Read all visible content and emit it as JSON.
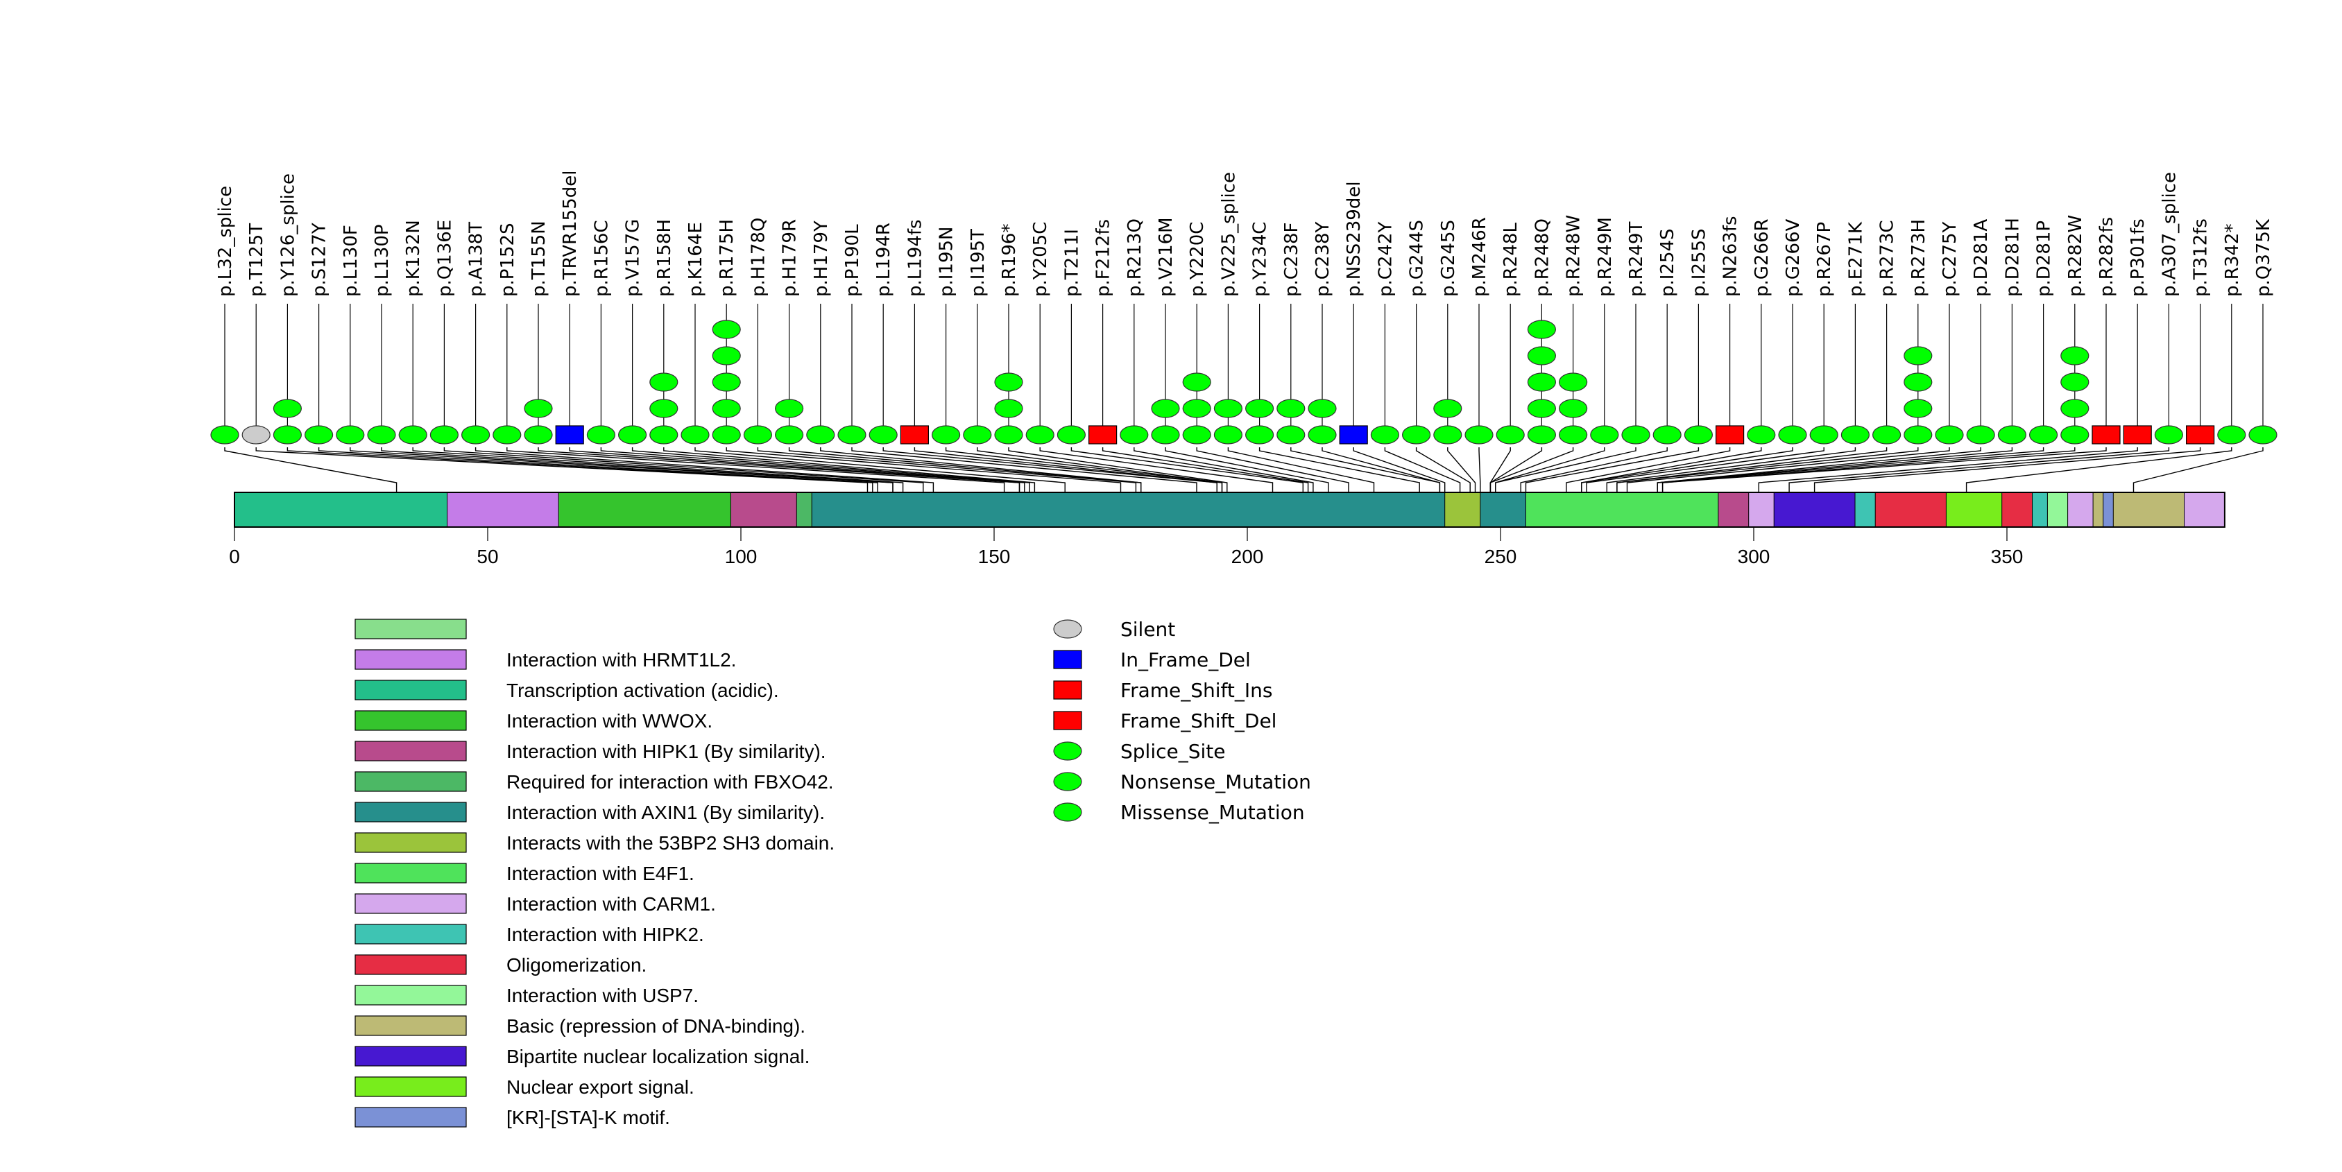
{
  "chart_data": {
    "type": "lollipop",
    "title": "",
    "protein_length": 393,
    "x_axis": {
      "ticks": [
        0,
        50,
        100,
        150,
        200,
        250,
        300,
        350
      ],
      "range": [
        0,
        393
      ]
    },
    "mutation_types": [
      {
        "name": "Silent",
        "color": "#cccccc",
        "shape": "ellipse"
      },
      {
        "name": "In_Frame_Del",
        "color": "#0000ff",
        "shape": "rect"
      },
      {
        "name": "Frame_Shift_Ins",
        "color": "#ff0000",
        "shape": "rect"
      },
      {
        "name": "Frame_Shift_Del",
        "color": "#ff0000",
        "shape": "rect"
      },
      {
        "name": "Splice_Site",
        "color": "#00ff00",
        "shape": "ellipse"
      },
      {
        "name": "Nonsense_Mutation",
        "color": "#00ff00",
        "shape": "ellipse"
      },
      {
        "name": "Missense_Mutation",
        "color": "#00ff00",
        "shape": "ellipse"
      }
    ],
    "mutations": [
      {
        "label": "p.L32_splice",
        "pos": 32,
        "count": 1,
        "type": "Splice_Site"
      },
      {
        "label": "p.T125T",
        "pos": 125,
        "count": 1,
        "type": "Silent"
      },
      {
        "label": "p.Y126_splice",
        "pos": 126,
        "count": 2,
        "type": "Splice_Site"
      },
      {
        "label": "p.S127Y",
        "pos": 127,
        "count": 1,
        "type": "Missense_Mutation"
      },
      {
        "label": "p.L130F",
        "pos": 130,
        "count": 1,
        "type": "Missense_Mutation"
      },
      {
        "label": "p.L130P",
        "pos": 130,
        "count": 1,
        "type": "Missense_Mutation"
      },
      {
        "label": "p.K132N",
        "pos": 132,
        "count": 1,
        "type": "Missense_Mutation"
      },
      {
        "label": "p.Q136E",
        "pos": 136,
        "count": 1,
        "type": "Missense_Mutation"
      },
      {
        "label": "p.A138T",
        "pos": 138,
        "count": 1,
        "type": "Missense_Mutation"
      },
      {
        "label": "p.P152S",
        "pos": 152,
        "count": 1,
        "type": "Missense_Mutation"
      },
      {
        "label": "p.T155N",
        "pos": 155,
        "count": 2,
        "type": "Missense_Mutation"
      },
      {
        "label": "p.TRVR155del",
        "pos": 155,
        "count": 1,
        "type": "In_Frame_Del"
      },
      {
        "label": "p.R156C",
        "pos": 156,
        "count": 1,
        "type": "Missense_Mutation"
      },
      {
        "label": "p.V157G",
        "pos": 157,
        "count": 1,
        "type": "Missense_Mutation"
      },
      {
        "label": "p.R158H",
        "pos": 158,
        "count": 3,
        "type": "Missense_Mutation"
      },
      {
        "label": "p.K164E",
        "pos": 164,
        "count": 1,
        "type": "Missense_Mutation"
      },
      {
        "label": "p.R175H",
        "pos": 175,
        "count": 5,
        "type": "Missense_Mutation"
      },
      {
        "label": "p.H178Q",
        "pos": 178,
        "count": 1,
        "type": "Missense_Mutation"
      },
      {
        "label": "p.H179R",
        "pos": 179,
        "count": 2,
        "type": "Missense_Mutation"
      },
      {
        "label": "p.H179Y",
        "pos": 179,
        "count": 1,
        "type": "Missense_Mutation"
      },
      {
        "label": "p.P190L",
        "pos": 190,
        "count": 1,
        "type": "Missense_Mutation"
      },
      {
        "label": "p.L194R",
        "pos": 194,
        "count": 1,
        "type": "Missense_Mutation"
      },
      {
        "label": "p.L194fs",
        "pos": 194,
        "count": 1,
        "type": "Frame_Shift_Del"
      },
      {
        "label": "p.I195N",
        "pos": 195,
        "count": 1,
        "type": "Missense_Mutation"
      },
      {
        "label": "p.I195T",
        "pos": 195,
        "count": 1,
        "type": "Missense_Mutation"
      },
      {
        "label": "p.R196*",
        "pos": 196,
        "count": 3,
        "type": "Nonsense_Mutation"
      },
      {
        "label": "p.Y205C",
        "pos": 205,
        "count": 1,
        "type": "Missense_Mutation"
      },
      {
        "label": "p.T211I",
        "pos": 211,
        "count": 1,
        "type": "Missense_Mutation"
      },
      {
        "label": "p.F212fs",
        "pos": 212,
        "count": 1,
        "type": "Frame_Shift_Del"
      },
      {
        "label": "p.R213Q",
        "pos": 213,
        "count": 1,
        "type": "Missense_Mutation"
      },
      {
        "label": "p.V216M",
        "pos": 216,
        "count": 2,
        "type": "Missense_Mutation"
      },
      {
        "label": "p.Y220C",
        "pos": 220,
        "count": 3,
        "type": "Missense_Mutation"
      },
      {
        "label": "p.V225_splice",
        "pos": 225,
        "count": 2,
        "type": "Splice_Site"
      },
      {
        "label": "p.Y234C",
        "pos": 234,
        "count": 2,
        "type": "Missense_Mutation"
      },
      {
        "label": "p.C238F",
        "pos": 238,
        "count": 2,
        "type": "Missense_Mutation"
      },
      {
        "label": "p.C238Y",
        "pos": 238,
        "count": 2,
        "type": "Missense_Mutation"
      },
      {
        "label": "p.NSS239del",
        "pos": 239,
        "count": 1,
        "type": "In_Frame_Del"
      },
      {
        "label": "p.C242Y",
        "pos": 242,
        "count": 1,
        "type": "Missense_Mutation"
      },
      {
        "label": "p.G244S",
        "pos": 244,
        "count": 1,
        "type": "Missense_Mutation"
      },
      {
        "label": "p.G245S",
        "pos": 245,
        "count": 2,
        "type": "Missense_Mutation"
      },
      {
        "label": "p.M246R",
        "pos": 246,
        "count": 1,
        "type": "Missense_Mutation"
      },
      {
        "label": "p.R248L",
        "pos": 248,
        "count": 1,
        "type": "Missense_Mutation"
      },
      {
        "label": "p.R248Q",
        "pos": 248,
        "count": 5,
        "type": "Missense_Mutation"
      },
      {
        "label": "p.R248W",
        "pos": 248,
        "count": 3,
        "type": "Missense_Mutation"
      },
      {
        "label": "p.R249M",
        "pos": 249,
        "count": 1,
        "type": "Missense_Mutation"
      },
      {
        "label": "p.R249T",
        "pos": 249,
        "count": 1,
        "type": "Missense_Mutation"
      },
      {
        "label": "p.I254S",
        "pos": 254,
        "count": 1,
        "type": "Missense_Mutation"
      },
      {
        "label": "p.I255S",
        "pos": 255,
        "count": 1,
        "type": "Missense_Mutation"
      },
      {
        "label": "p.N263fs",
        "pos": 263,
        "count": 1,
        "type": "Frame_Shift_Del"
      },
      {
        "label": "p.G266R",
        "pos": 266,
        "count": 1,
        "type": "Missense_Mutation"
      },
      {
        "label": "p.G266V",
        "pos": 266,
        "count": 1,
        "type": "Missense_Mutation"
      },
      {
        "label": "p.R267P",
        "pos": 267,
        "count": 1,
        "type": "Missense_Mutation"
      },
      {
        "label": "p.E271K",
        "pos": 271,
        "count": 1,
        "type": "Missense_Mutation"
      },
      {
        "label": "p.R273C",
        "pos": 273,
        "count": 1,
        "type": "Missense_Mutation"
      },
      {
        "label": "p.R273H",
        "pos": 273,
        "count": 4,
        "type": "Missense_Mutation"
      },
      {
        "label": "p.C275Y",
        "pos": 275,
        "count": 1,
        "type": "Missense_Mutation"
      },
      {
        "label": "p.D281A",
        "pos": 281,
        "count": 1,
        "type": "Missense_Mutation"
      },
      {
        "label": "p.D281H",
        "pos": 281,
        "count": 1,
        "type": "Missense_Mutation"
      },
      {
        "label": "p.D281P",
        "pos": 281,
        "count": 1,
        "type": "Missense_Mutation"
      },
      {
        "label": "p.R282W",
        "pos": 282,
        "count": 4,
        "type": "Missense_Mutation"
      },
      {
        "label": "p.R282fs",
        "pos": 282,
        "count": 1,
        "type": "Frame_Shift_Del"
      },
      {
        "label": "p.P301fs",
        "pos": 301,
        "count": 1,
        "type": "Frame_Shift_Del"
      },
      {
        "label": "p.A307_splice",
        "pos": 307,
        "count": 1,
        "type": "Splice_Site"
      },
      {
        "label": "p.T312fs",
        "pos": 312,
        "count": 1,
        "type": "Frame_Shift_Del"
      },
      {
        "label": "p.R342*",
        "pos": 342,
        "count": 1,
        "type": "Nonsense_Mutation"
      },
      {
        "label": "p.Q375K",
        "pos": 375,
        "count": 1,
        "type": "Missense_Mutation"
      }
    ],
    "domains": [
      {
        "name": "Transcription activation (acidic).",
        "start": 1,
        "end": 43,
        "color": "#23bf8a"
      },
      {
        "name": "Interaction with HRMT1L2.",
        "start": 43,
        "end": 65,
        "color": "#c47ce8"
      },
      {
        "name": "Interaction with WWOX.",
        "start": 65,
        "end": 99,
        "color": "#35c42d"
      },
      {
        "name": "Interaction with HIPK1 (By similarity).",
        "start": 99,
        "end": 112,
        "color": "#b84b8c"
      },
      {
        "name": "Required for interaction with FBXO42.",
        "start": 112,
        "end": 115,
        "color": "#4cb865"
      },
      {
        "name": "Interaction with AXIN1 (By similarity).",
        "start": 115,
        "end": 240,
        "color": "#268f8c"
      },
      {
        "name": "Interacts with the 53BP2 SH3 domain.",
        "start": 240,
        "end": 247,
        "color": "#9bc43b"
      },
      {
        "name": "Interaction with AXIN1 (By similarity).",
        "start": 247,
        "end": 256,
        "color": "#268f8c"
      },
      {
        "name": "Interaction with E4F1.",
        "start": 256,
        "end": 294,
        "color": "#4fe35b"
      },
      {
        "name": "Interaction with HIPK1 (By similarity).",
        "start": 294,
        "end": 300,
        "color": "#b84b8c"
      },
      {
        "name": "Interaction with CARM1.",
        "start": 300,
        "end": 305,
        "color": "#d5a8ed"
      },
      {
        "name": "Bipartite nuclear localization signal.",
        "start": 305,
        "end": 321,
        "color": "#4718d1"
      },
      {
        "name": "Interaction with HIPK2.",
        "start": 321,
        "end": 325,
        "color": "#3ec4b3"
      },
      {
        "name": "Oligomerization.",
        "start": 325,
        "end": 339,
        "color": "#e62d44"
      },
      {
        "name": "Nuclear export signal.",
        "start": 339,
        "end": 350,
        "color": "#78ed1c"
      },
      {
        "name": "Oligomerization.",
        "start": 350,
        "end": 356,
        "color": "#e62d44"
      },
      {
        "name": "Interaction with HIPK2.",
        "start": 356,
        "end": 359,
        "color": "#3ec4b3"
      },
      {
        "name": "Interaction with USP7.",
        "start": 359,
        "end": 363,
        "color": "#93f799"
      },
      {
        "name": "Interaction with CARM1.",
        "start": 363,
        "end": 368,
        "color": "#d5a8ed"
      },
      {
        "name": "Basic (repression of DNA-binding).",
        "start": 368,
        "end": 370,
        "color": "#bdba75"
      },
      {
        "name": "[KR]-[STA]-K motif.",
        "start": 370,
        "end": 372,
        "color": "#7b91d6"
      },
      {
        "name": "Basic (repression of DNA-binding).",
        "start": 372,
        "end": 386,
        "color": "#bdba75"
      },
      {
        "name": "Interaction with CARM1.",
        "start": 386,
        "end": 393,
        "color": "#d5a8ed"
      }
    ],
    "domain_legend": [
      {
        "name": "",
        "color": "#88de8c"
      },
      {
        "name": "Interaction with HRMT1L2.",
        "color": "#c47ce8"
      },
      {
        "name": "Transcription activation (acidic).",
        "color": "#23bf8a"
      },
      {
        "name": "Interaction with WWOX.",
        "color": "#35c42d"
      },
      {
        "name": "Interaction with HIPK1 (By similarity).",
        "color": "#b84b8c"
      },
      {
        "name": "Required for interaction with FBXO42.",
        "color": "#4cb865"
      },
      {
        "name": "Interaction with AXIN1 (By similarity).",
        "color": "#268f8c"
      },
      {
        "name": "Interacts with the 53BP2 SH3 domain.",
        "color": "#9bc43b"
      },
      {
        "name": "Interaction with E4F1.",
        "color": "#4fe35b"
      },
      {
        "name": "Interaction with CARM1.",
        "color": "#d5a8ed"
      },
      {
        "name": "Interaction with HIPK2.",
        "color": "#3ec4b3"
      },
      {
        "name": "Oligomerization.",
        "color": "#e62d44"
      },
      {
        "name": "Interaction with USP7.",
        "color": "#93f799"
      },
      {
        "name": "Basic (repression of DNA-binding).",
        "color": "#bdba75"
      },
      {
        "name": "Bipartite nuclear localization signal.",
        "color": "#4718d1"
      },
      {
        "name": "Nuclear export signal.",
        "color": "#78ed1c"
      },
      {
        "name": "[KR]-[STA]-K motif.",
        "color": "#7b91d6"
      }
    ],
    "legend_placement": "bottom"
  }
}
